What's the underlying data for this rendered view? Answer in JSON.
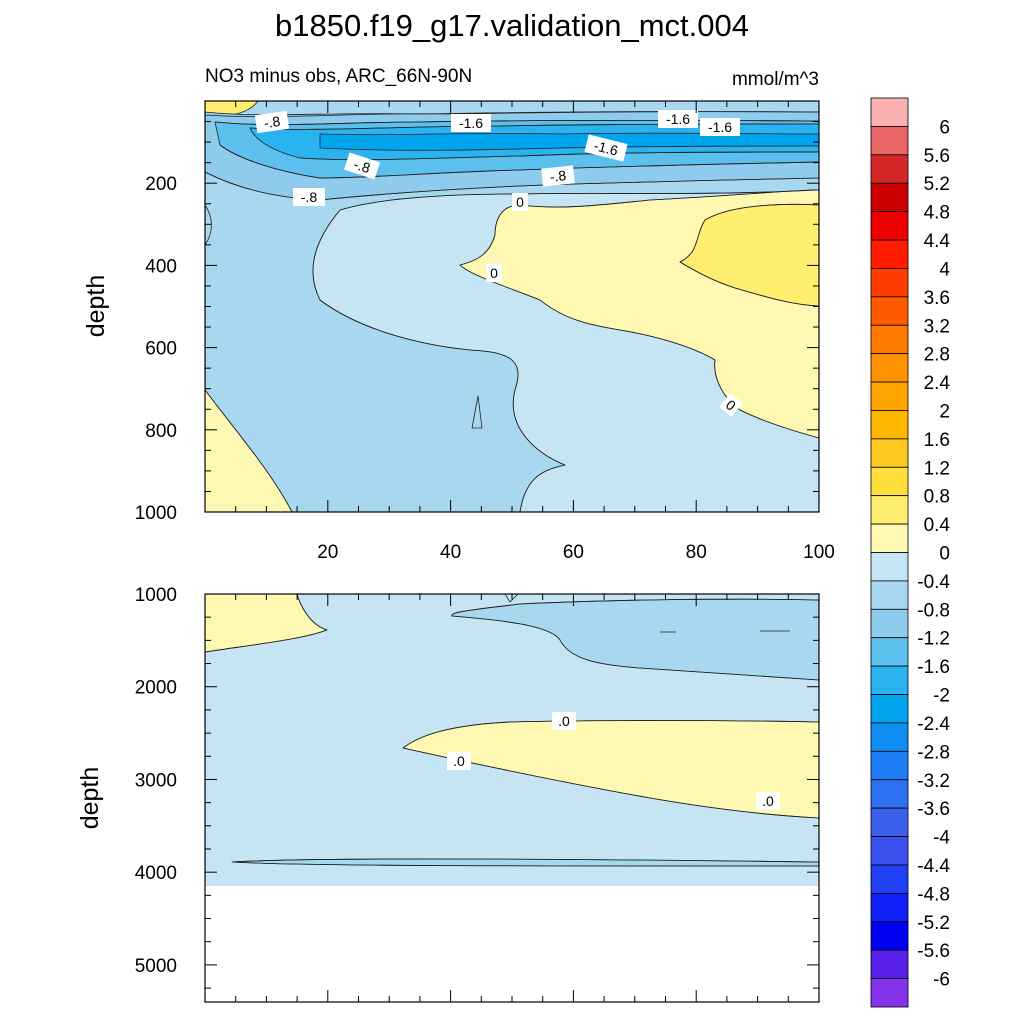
{
  "header": {
    "title": "b1850.f19_g17.validation_mct.004",
    "subtitle_left": "NO3 minus obs, ARC_66N-90N",
    "subtitle_right": "mmol/m^3"
  },
  "chart_data": [
    {
      "type": "contour",
      "panel": "upper",
      "xlabel": "",
      "ylabel": "depth",
      "xlim": [
        0,
        100
      ],
      "ylim": [
        0,
        1000
      ],
      "y_reversed": true,
      "x_ticks": [
        20,
        40,
        60,
        80,
        100
      ],
      "y_ticks": [
        200,
        400,
        600,
        800,
        1000
      ],
      "contour_labels": [
        "-.8",
        "-1.6",
        "-.8",
        "-1.6",
        "-1.6",
        "-1.6",
        "-.8",
        "-.8",
        "0",
        "0",
        "0"
      ],
      "regions": [
        {
          "level": "-1.2 to -1.6",
          "desc": "core of negative anomaly, depth 50-150"
        },
        {
          "level": "-0.4 to -0.8",
          "desc": "mid-depth band and western column"
        },
        {
          "level": "0 to 0.4",
          "desc": "eastern positive anomaly below 200"
        },
        {
          "level": "0.4 to 0.8",
          "desc": "surface near x=0-10 and x=90-100, depth 250-500"
        }
      ]
    },
    {
      "type": "contour",
      "panel": "lower",
      "xlabel": "",
      "ylabel": "depth",
      "xlim": [
        0,
        100
      ],
      "ylim": [
        1000,
        5400
      ],
      "y_reversed": true,
      "y_ticks": [
        1000,
        2000,
        3000,
        4000,
        5000
      ],
      "contour_labels": [
        ".0",
        ".0",
        ".0"
      ],
      "regions": [
        {
          "level": "0 to 0.4",
          "desc": "band from x=32 to 100, depth 2350-3250"
        },
        {
          "level": "-0.4 to -0.8",
          "desc": "eastern patch near depth 1000-1800"
        },
        {
          "level": "-0.4 to 0",
          "desc": "background down to 4100"
        }
      ]
    }
  ],
  "colorbar": {
    "labels": [
      "6",
      "5.6",
      "5.2",
      "4.8",
      "4.4",
      "4",
      "3.6",
      "3.2",
      "2.8",
      "2.4",
      "2",
      "1.6",
      "1.2",
      "0.8",
      "0.4",
      "0",
      "-0.4",
      "-0.8",
      "-1.2",
      "-1.6",
      "-2",
      "-2.4",
      "-2.8",
      "-3.2",
      "-3.6",
      "-4",
      "-4.4",
      "-4.8",
      "-5.2",
      "-5.6",
      "-6"
    ],
    "colors": [
      "#f9b0b0",
      "#e86565",
      "#d42828",
      "#cc0000",
      "#ee0000",
      "#ff1a00",
      "#ff3c00",
      "#ff5a00",
      "#ff7800",
      "#ff9200",
      "#ffa500",
      "#ffb700",
      "#ffc81f",
      "#ffdf3c",
      "#ffed70",
      "#fff8b2",
      "#c5e5f4",
      "#a7d8ef",
      "#8ecbec",
      "#5cc0ef",
      "#29b3ef",
      "#00a5ee",
      "#0f8ef2",
      "#1e7ef6",
      "#2d70f0",
      "#3b60ea",
      "#3c50ee",
      "#2240f5",
      "#1020f8",
      "#0000f4",
      "#5a20ec",
      "#8433ea"
    ]
  }
}
